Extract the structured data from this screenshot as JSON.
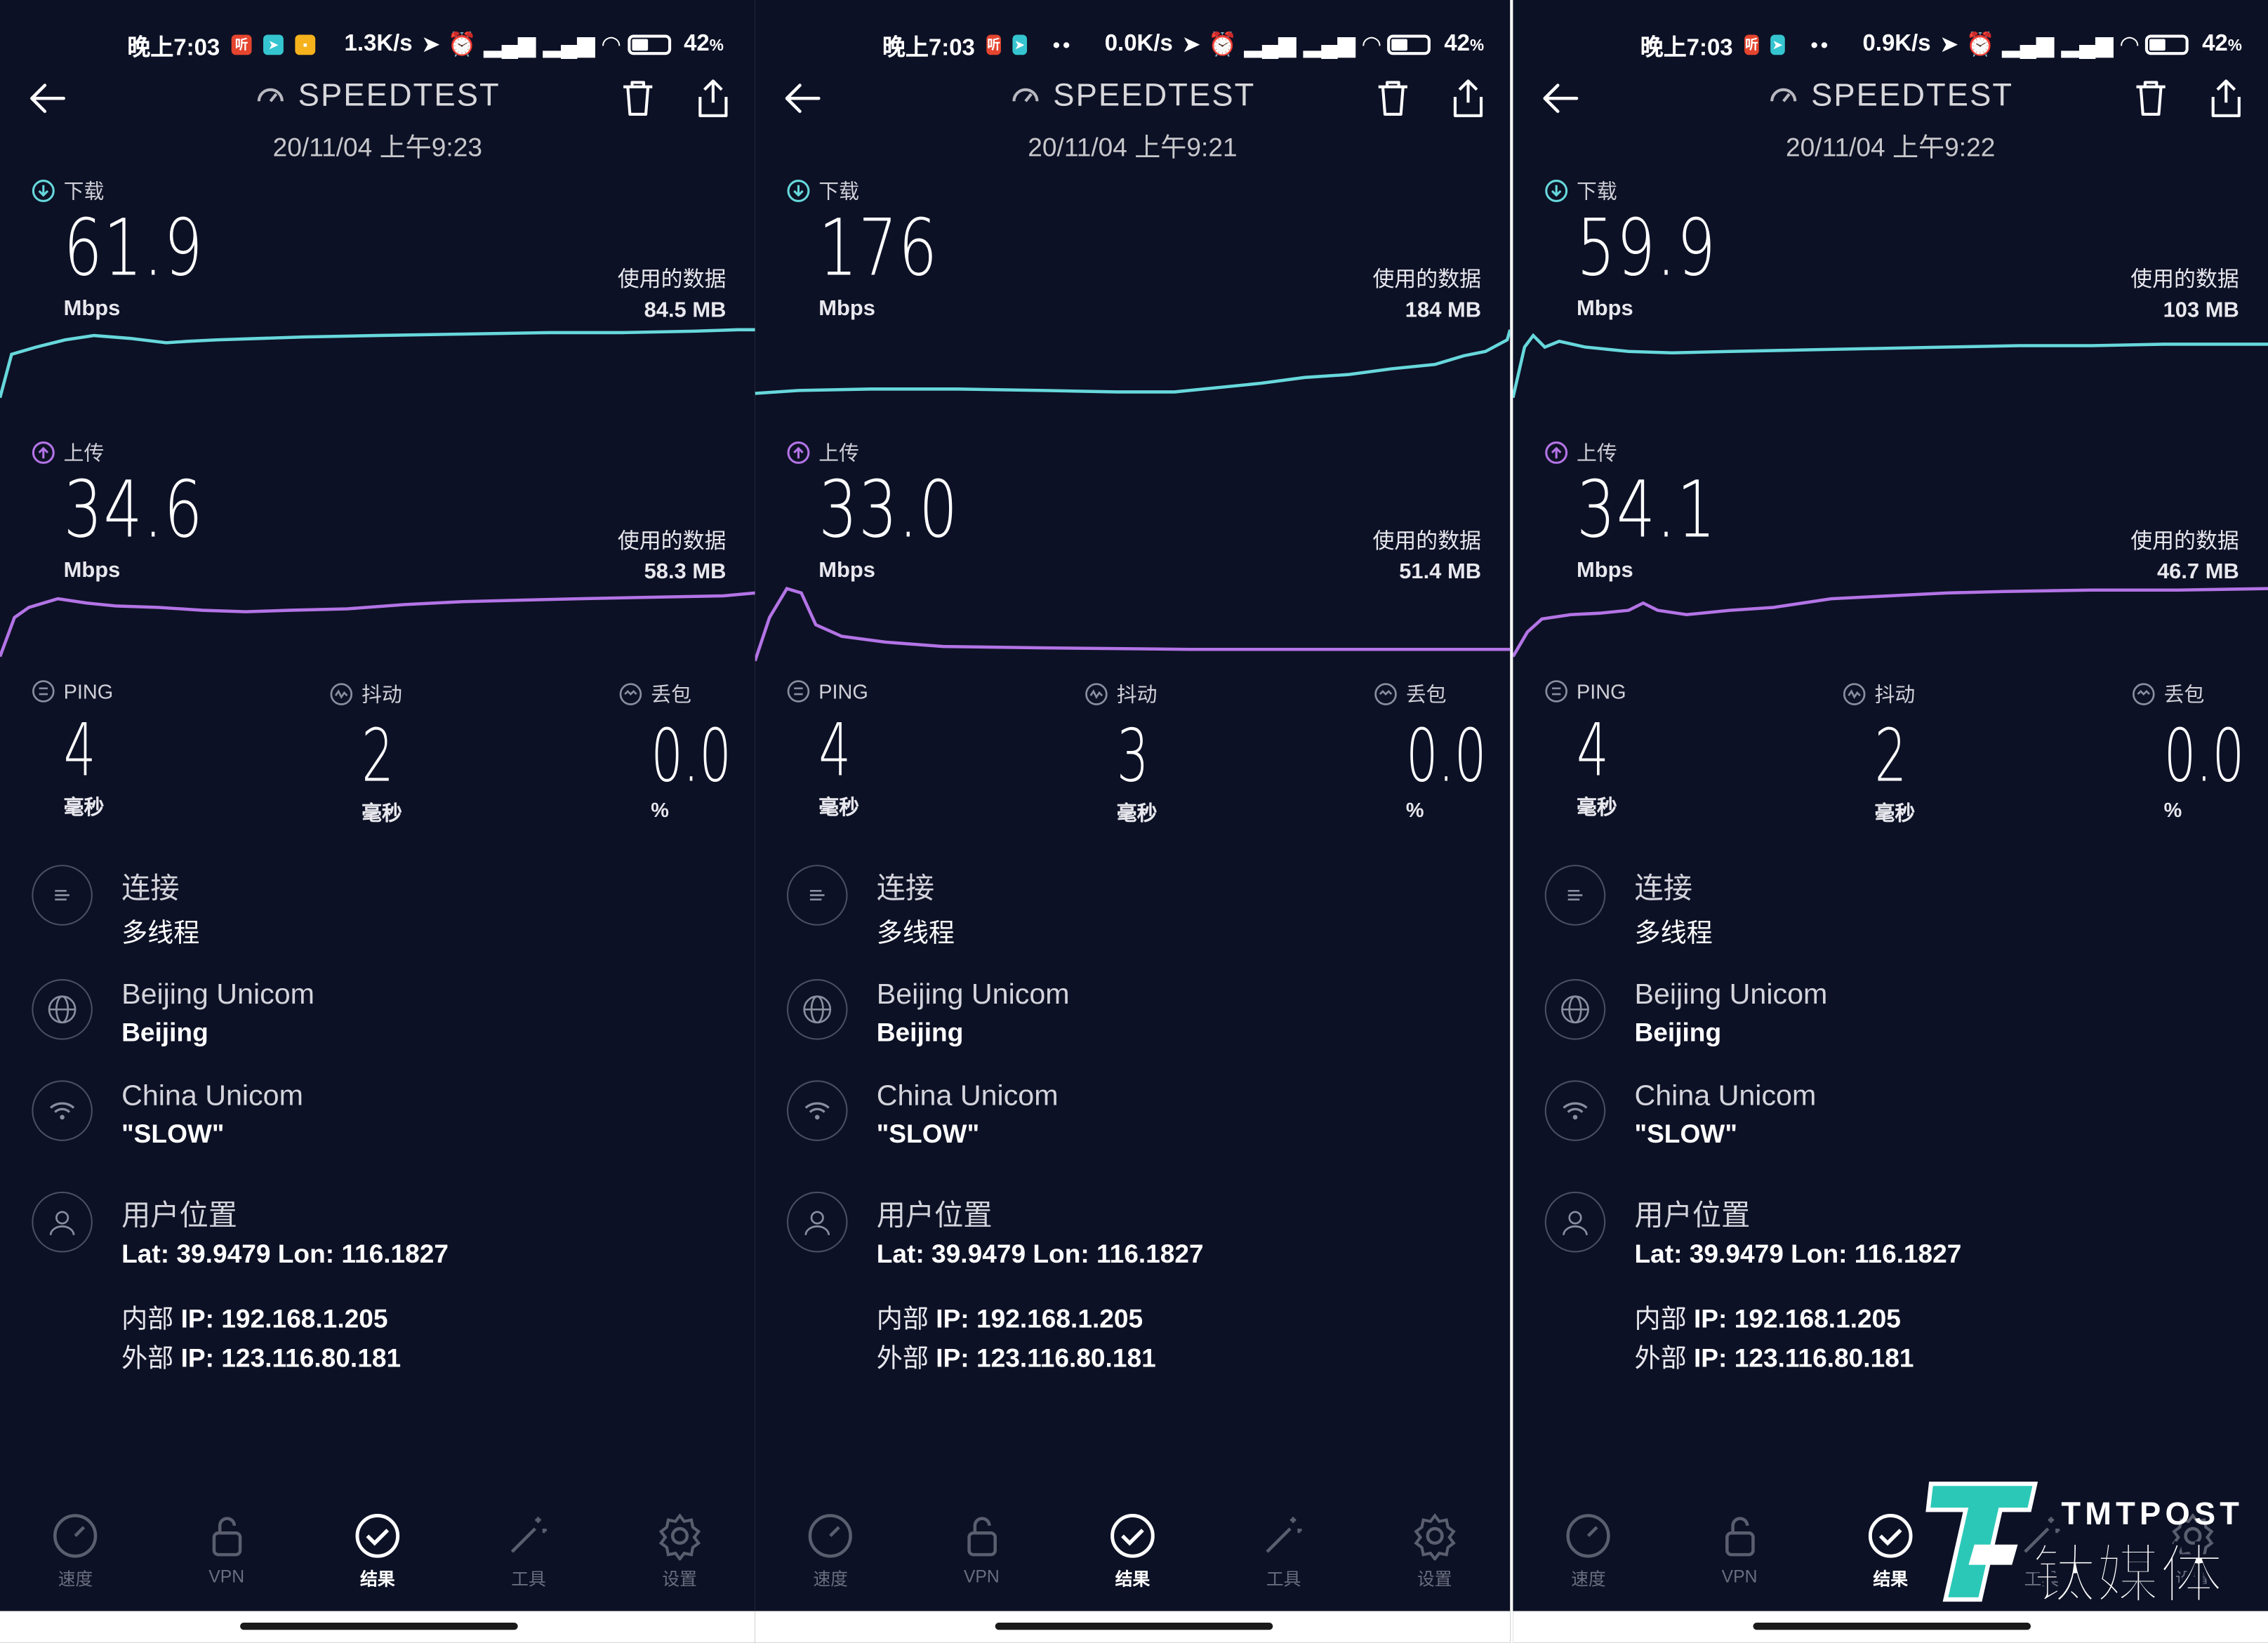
{
  "colors": {
    "background": "#0d1125",
    "download_line": "#67d8dc",
    "upload_line": "#b374e6",
    "brand_teal": "#2cc8b7"
  },
  "panels": [
    {
      "status": {
        "time": "晚上7:03",
        "net_speed": "1.3K/s",
        "battery": "42",
        "battery_unit": "%"
      },
      "title": "SPEEDTEST",
      "datetime": "20/11/04 上午9:23",
      "download": {
        "label": "下载",
        "value": "61.9",
        "unit": "Mbps",
        "used_label": "使用的数据",
        "used_value": "84.5 MB"
      },
      "upload": {
        "label": "上传",
        "value": "34.6",
        "unit": "Mbps",
        "used_label": "使用的数据",
        "used_value": "58.3 MB"
      },
      "ping": {
        "label": "PING",
        "value": "4",
        "unit": "毫秒"
      },
      "jitter": {
        "label": "抖动",
        "value": "2",
        "unit": "毫秒"
      },
      "loss": {
        "label": "丢包",
        "value": "0.0",
        "unit": "%"
      },
      "connection": {
        "title": "连接",
        "value": "多线程"
      },
      "server": {
        "title": "Beijing Unicom",
        "value": "Beijing"
      },
      "isp": {
        "title": "China Unicom",
        "value": "\"SLOW\""
      },
      "location": {
        "title": "用户位置",
        "value": "Lat: 39.9479 Lon: 116.1827"
      },
      "internal_ip": {
        "label": "内部",
        "value": "IP: 192.168.1.205"
      },
      "external_ip": {
        "label": "外部",
        "value": "IP: 123.116.80.181"
      }
    },
    {
      "status": {
        "time": "晚上7:03",
        "net_speed": "0.0K/s",
        "battery": "42",
        "battery_unit": "%"
      },
      "title": "SPEEDTEST",
      "datetime": "20/11/04 上午9:21",
      "download": {
        "label": "下载",
        "value": "176",
        "unit": "Mbps",
        "used_label": "使用的数据",
        "used_value": "184 MB"
      },
      "upload": {
        "label": "上传",
        "value": "33.0",
        "unit": "Mbps",
        "used_label": "使用的数据",
        "used_value": "51.4 MB"
      },
      "ping": {
        "label": "PING",
        "value": "4",
        "unit": "毫秒"
      },
      "jitter": {
        "label": "抖动",
        "value": "3",
        "unit": "毫秒"
      },
      "loss": {
        "label": "丢包",
        "value": "0.0",
        "unit": "%"
      },
      "connection": {
        "title": "连接",
        "value": "多线程"
      },
      "server": {
        "title": "Beijing Unicom",
        "value": "Beijing"
      },
      "isp": {
        "title": "China Unicom",
        "value": "\"SLOW\""
      },
      "location": {
        "title": "用户位置",
        "value": "Lat: 39.9479 Lon: 116.1827"
      },
      "internal_ip": {
        "label": "内部",
        "value": "IP: 192.168.1.205"
      },
      "external_ip": {
        "label": "外部",
        "value": "IP: 123.116.80.181"
      }
    },
    {
      "status": {
        "time": "晚上7:03",
        "net_speed": "0.9K/s",
        "battery": "42",
        "battery_unit": "%"
      },
      "title": "SPEEDTEST",
      "datetime": "20/11/04 上午9:22",
      "download": {
        "label": "下载",
        "value": "59.9",
        "unit": "Mbps",
        "used_label": "使用的数据",
        "used_value": "103 MB"
      },
      "upload": {
        "label": "上传",
        "value": "34.1",
        "unit": "Mbps",
        "used_label": "使用的数据",
        "used_value": "46.7 MB"
      },
      "ping": {
        "label": "PING",
        "value": "4",
        "unit": "毫秒"
      },
      "jitter": {
        "label": "抖动",
        "value": "2",
        "unit": "毫秒"
      },
      "loss": {
        "label": "丢包",
        "value": "0.0",
        "unit": "%"
      },
      "connection": {
        "title": "连接",
        "value": "多线程"
      },
      "server": {
        "title": "Beijing Unicom",
        "value": "Beijing"
      },
      "isp": {
        "title": "China Unicom",
        "value": "\"SLOW\""
      },
      "location": {
        "title": "用户位置",
        "value": "Lat: 39.9479 Lon: 116.1827"
      },
      "internal_ip": {
        "label": "内部",
        "value": "IP: 192.168.1.205"
      },
      "external_ip": {
        "label": "外部",
        "value": "IP: 123.116.80.181"
      }
    }
  ],
  "tabs": [
    {
      "label": "速度",
      "icon": "speedometer-icon"
    },
    {
      "label": "VPN",
      "icon": "lock-icon"
    },
    {
      "label": "结果",
      "icon": "check-circle-icon"
    },
    {
      "label": "工具",
      "icon": "magic-wand-icon"
    },
    {
      "label": "设置",
      "icon": "gear-icon"
    }
  ],
  "active_tab": "结果",
  "watermark": {
    "top": "TMTPOST",
    "bottom": "钛媒体"
  }
}
